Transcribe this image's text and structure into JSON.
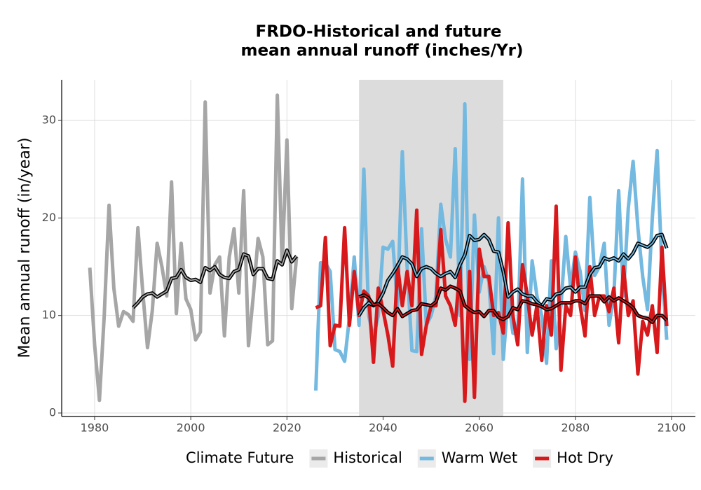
{
  "chart_data": {
    "type": "line",
    "title_lines": [
      "FRDO-Historical and future",
      "mean annual runoff (inches/Yr)"
    ],
    "y_label": "Mean annual runoff (in/year)",
    "legend_title": "Climate Future",
    "legend_position": "bottom",
    "grid": true,
    "shaded_range": [
      2035,
      2065
    ],
    "shade_color": "#dcdcdc",
    "xlim": [
      1973.15,
      2104.96
    ],
    "ylim": [
      -0.36,
      34.17
    ],
    "xticks": [
      1980,
      2000,
      2020,
      2040,
      2060,
      2080,
      2100
    ],
    "yticks": [
      0,
      10,
      20,
      30
    ],
    "series": [
      {
        "name": "Historical",
        "color": "#a6a6a6",
        "x": [
          1979,
          1980,
          1981,
          1982,
          1983,
          1984,
          1985,
          1986,
          1987,
          1988,
          1989,
          1990,
          1991,
          1992,
          1993,
          1994,
          1995,
          1996,
          1997,
          1998,
          1999,
          2000,
          2001,
          2002,
          2003,
          2004,
          2005,
          2006,
          2007,
          2008,
          2009,
          2010,
          2011,
          2012,
          2013,
          2014,
          2015,
          2016,
          2017,
          2018,
          2019,
          2020,
          2021,
          2022
        ],
        "values": [
          14.9,
          7,
          1.3,
          10,
          21.3,
          12.8,
          8.9,
          10.4,
          10.1,
          9.4,
          19,
          12.5,
          6.7,
          10.5,
          17.4,
          15,
          12,
          23.7,
          10.2,
          17.4,
          11.7,
          10.6,
          7.5,
          8.3,
          31.9,
          12.3,
          15.2,
          16,
          7.9,
          16,
          18.9,
          12.3,
          22.8,
          6.9,
          12,
          17.9,
          16,
          7,
          7.4,
          32.6,
          15.2,
          28,
          10.7,
          16
        ],
        "trend_x": [
          1988,
          1989,
          1990,
          1991,
          1992,
          1993,
          1994,
          1995,
          1996,
          1997,
          1998,
          1999,
          2000,
          2001,
          2002,
          2003,
          2004,
          2005,
          2006,
          2007,
          2008,
          2009,
          2010,
          2011,
          2012,
          2013,
          2014,
          2015,
          2016,
          2017,
          2018,
          2019,
          2020,
          2021,
          2022
        ],
        "trend_values": [
          10.8,
          11.3,
          11.9,
          12.2,
          12.3,
          11.9,
          12.2,
          12.5,
          13.8,
          13.9,
          14.7,
          13.9,
          13.6,
          13.7,
          13.4,
          14.9,
          14.6,
          15,
          14.2,
          13.9,
          13.8,
          14.5,
          14.7,
          16.3,
          16.1,
          14.2,
          14.8,
          14.8,
          13.8,
          13.7,
          15.6,
          15.2,
          16.7,
          15.5,
          16.1
        ]
      },
      {
        "name": "Warm Wet",
        "color": "#74b9e0",
        "x": [
          2026,
          2027,
          2028,
          2029,
          2030,
          2031,
          2032,
          2033,
          2034,
          2035,
          2036,
          2037,
          2038,
          2039,
          2040,
          2041,
          2042,
          2043,
          2044,
          2045,
          2046,
          2047,
          2048,
          2049,
          2050,
          2051,
          2052,
          2053,
          2054,
          2055,
          2056,
          2057,
          2058,
          2059,
          2060,
          2061,
          2062,
          2063,
          2064,
          2065,
          2066,
          2067,
          2068,
          2069,
          2070,
          2071,
          2072,
          2073,
          2074,
          2075,
          2076,
          2077,
          2078,
          2079,
          2080,
          2081,
          2082,
          2083,
          2084,
          2085,
          2086,
          2087,
          2088,
          2089,
          2090,
          2091,
          2092,
          2093,
          2094,
          2095,
          2096,
          2097,
          2098,
          2099
        ],
        "values": [
          2.3,
          15.4,
          15.4,
          14.5,
          6.5,
          6.3,
          5.3,
          9.8,
          16,
          9,
          25,
          10,
          7.7,
          10,
          17,
          16.8,
          17.6,
          11,
          26.8,
          15,
          6.4,
          6.3,
          18.9,
          9,
          10,
          12,
          21.4,
          17.8,
          16,
          27.1,
          10,
          31.7,
          5.5,
          20.3,
          12.4,
          15,
          13.5,
          6.1,
          20,
          5.5,
          12,
          8.2,
          8,
          24,
          6.2,
          15.6,
          12,
          10,
          5.1,
          15.6,
          6.6,
          11,
          18.1,
          12.8,
          16.5,
          14.5,
          10.5,
          22.1,
          14.1,
          15,
          17.4,
          9,
          12,
          22.8,
          12,
          21,
          25.8,
          19,
          14,
          10.6,
          20,
          26.9,
          14.8,
          7.5
        ],
        "trend_x": [
          2035,
          2036,
          2037,
          2038,
          2039,
          2040,
          2041,
          2042,
          2043,
          2044,
          2045,
          2046,
          2047,
          2048,
          2049,
          2050,
          2051,
          2052,
          2053,
          2054,
          2055,
          2056,
          2057,
          2058,
          2059,
          2060,
          2061,
          2062,
          2063,
          2064,
          2065,
          2066,
          2067,
          2068,
          2069,
          2070,
          2071,
          2072,
          2073,
          2074,
          2075,
          2076,
          2077,
          2078,
          2079,
          2080,
          2081,
          2082,
          2083,
          2084,
          2085,
          2086,
          2087,
          2088,
          2089,
          2090,
          2091,
          2092,
          2093,
          2094,
          2095,
          2096,
          2097,
          2098,
          2099
        ],
        "trend_values": [
          10,
          10.8,
          11.3,
          11,
          11.4,
          12.3,
          13.6,
          14.3,
          15.1,
          16,
          15.8,
          15.3,
          14,
          14.8,
          15,
          14.8,
          14.3,
          14,
          14.3,
          14.5,
          13.9,
          15.2,
          16.2,
          18.2,
          17.7,
          17.8,
          18.3,
          17.8,
          16.6,
          16.5,
          14.5,
          11.9,
          12.4,
          12.7,
          12.2,
          12,
          12,
          11.4,
          11,
          11.7,
          11.6,
          12.2,
          12.3,
          12.8,
          12.9,
          12.4,
          12.9,
          12.9,
          14.2,
          14.9,
          15,
          15.9,
          15.7,
          15.9,
          15.6,
          16.3,
          15.8,
          16.4,
          17.4,
          17.2,
          17,
          17.4,
          18.2,
          18.3,
          16.9
        ]
      },
      {
        "name": "Hot Dry",
        "color": "#d7191c",
        "x": [
          2026,
          2027,
          2028,
          2029,
          2030,
          2031,
          2032,
          2033,
          2034,
          2035,
          2036,
          2037,
          2038,
          2039,
          2040,
          2041,
          2042,
          2043,
          2044,
          2045,
          2046,
          2047,
          2048,
          2049,
          2050,
          2051,
          2052,
          2053,
          2054,
          2055,
          2056,
          2057,
          2058,
          2059,
          2060,
          2061,
          2062,
          2063,
          2064,
          2065,
          2066,
          2067,
          2068,
          2069,
          2070,
          2071,
          2072,
          2073,
          2074,
          2075,
          2076,
          2077,
          2078,
          2079,
          2080,
          2081,
          2082,
          2083,
          2084,
          2085,
          2086,
          2087,
          2088,
          2089,
          2090,
          2091,
          2092,
          2093,
          2094,
          2095,
          2096,
          2097,
          2098,
          2099
        ],
        "values": [
          10.8,
          11,
          18,
          6.9,
          9,
          8.9,
          19,
          9,
          14.5,
          10,
          12.5,
          12,
          5.2,
          12.8,
          10.5,
          8,
          4.8,
          15.2,
          11,
          14.5,
          11,
          20.8,
          6,
          9,
          11,
          11,
          18.8,
          12,
          11,
          9,
          15,
          1.2,
          14.5,
          1.6,
          16.8,
          14,
          14,
          10,
          10.3,
          8.2,
          19.5,
          10,
          7,
          15.2,
          12,
          8,
          11,
          5.4,
          11,
          8,
          21.2,
          4.4,
          11,
          10,
          16,
          11,
          7.9,
          15,
          10,
          12,
          12,
          10.4,
          12.8,
          7.2,
          15,
          10,
          11.5,
          4,
          9.4,
          8,
          11,
          6.2,
          17,
          8.9
        ],
        "trend_x": [
          2035,
          2036,
          2037,
          2038,
          2039,
          2040,
          2041,
          2042,
          2043,
          2044,
          2045,
          2046,
          2047,
          2048,
          2049,
          2050,
          2051,
          2052,
          2053,
          2054,
          2055,
          2056,
          2057,
          2058,
          2059,
          2060,
          2061,
          2062,
          2063,
          2064,
          2065,
          2066,
          2067,
          2068,
          2069,
          2070,
          2071,
          2072,
          2073,
          2074,
          2075,
          2076,
          2077,
          2078,
          2079,
          2080,
          2081,
          2082,
          2083,
          2084,
          2085,
          2086,
          2087,
          2088,
          2089,
          2090,
          2091,
          2092,
          2093,
          2094,
          2095,
          2096,
          2097,
          2098,
          2099
        ],
        "trend_values": [
          11.9,
          12.1,
          11.8,
          11.1,
          11.2,
          10.8,
          10.3,
          10,
          10.7,
          9.9,
          10.2,
          10.5,
          10.6,
          11.2,
          11.1,
          11,
          11.4,
          12.8,
          12.6,
          13,
          12.8,
          12.5,
          11,
          10.6,
          10.3,
          10.4,
          9.9,
          10.5,
          10.5,
          9.8,
          9.6,
          9.9,
          10.8,
          10.6,
          11.5,
          11.4,
          11.2,
          11.1,
          10.9,
          10.6,
          10.7,
          11,
          11.3,
          11.3,
          11.3,
          11.5,
          11.5,
          11.2,
          12,
          12,
          12,
          11.4,
          11.9,
          11.5,
          11.8,
          11.5,
          11.2,
          10.8,
          10,
          9.8,
          9.7,
          9.3,
          10,
          10,
          9.5
        ]
      }
    ]
  }
}
